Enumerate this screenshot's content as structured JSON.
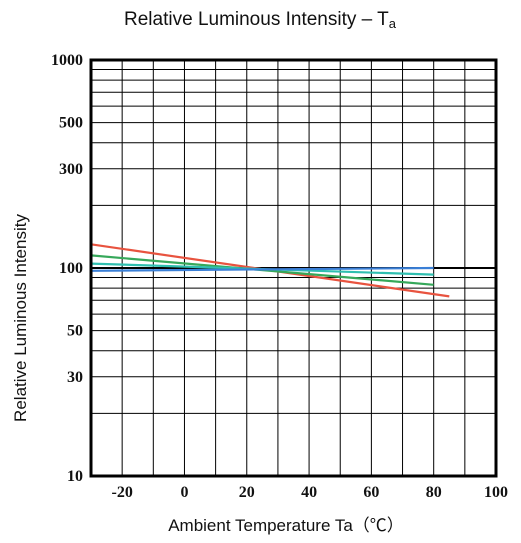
{
  "chart_data": {
    "type": "line",
    "title": "Relative Luminous Intensity – T",
    "title_subscript": "a",
    "xlabel": "Ambient Temperature  Ta（℃）",
    "ylabel": "Relative Luminous Intensity",
    "xlim": [
      -30,
      100
    ],
    "ylim": [
      10,
      1000
    ],
    "y_scale": "log",
    "grid": true,
    "x_ticks": [
      -20,
      0,
      20,
      40,
      60,
      80,
      100
    ],
    "x_tick_labels": [
      "-20",
      "0",
      "20",
      "40",
      "60",
      "80",
      "100"
    ],
    "y_ticks": [
      10,
      30,
      50,
      100,
      300,
      500,
      1000
    ],
    "y_tick_labels": [
      "10",
      "30",
      "50",
      "100",
      "300",
      "500",
      "1000"
    ],
    "series": [
      {
        "color": "#e8533f",
        "x": [
          -30,
          85
        ],
        "y": [
          130,
          73
        ]
      },
      {
        "color": "#36a85a",
        "x": [
          -30,
          80
        ],
        "y": [
          115,
          83
        ]
      },
      {
        "color": "#2fbfb0",
        "x": [
          -30,
          80
        ],
        "y": [
          105,
          93
        ]
      },
      {
        "color": "#3a7fd6",
        "x": [
          -30,
          80
        ],
        "y": [
          97,
          100
        ]
      }
    ]
  }
}
